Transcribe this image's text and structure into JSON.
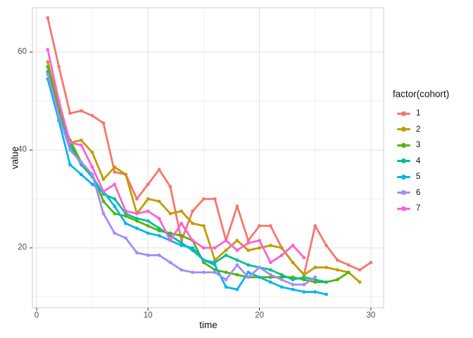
{
  "chart_data": {
    "type": "line",
    "title": "",
    "xlabel": "time",
    "ylabel": "value",
    "legend_title": "factor(cohort)",
    "legend_position": "right",
    "grid": "major and minor gridlines on white panel",
    "xlim": [
      -0.4,
      31.2
    ],
    "ylim": [
      7.8,
      69.2
    ],
    "x_major_ticks": [
      0,
      10,
      20,
      30
    ],
    "x_minor_gridlines": [
      5,
      15,
      25
    ],
    "y_major_ticks": [
      20,
      40,
      60
    ],
    "y_minor_gridlines": [
      10,
      30,
      50
    ],
    "x_start": 1,
    "x_step": 1,
    "marker": "point",
    "series": [
      {
        "name": "1",
        "color": "#F8766D",
        "values": [
          67,
          57,
          47.5,
          48,
          47,
          45.5,
          35.5,
          35,
          30,
          33,
          36,
          32.5,
          21.5,
          27.5,
          30,
          30,
          21.5,
          28.5,
          21.5,
          24.5,
          24.5,
          20,
          17,
          14.5,
          24.5,
          20.5,
          17.5,
          16.5,
          15.5,
          17
        ]
      },
      {
        "name": "2",
        "color": "#C49A00",
        "values": [
          58,
          49,
          41.5,
          42,
          39.5,
          34,
          36.5,
          35,
          27,
          30,
          29.5,
          27,
          27.5,
          25,
          24.5,
          17.5,
          19.5,
          21.5,
          19.5,
          20,
          20.5,
          20,
          17,
          14.5,
          16,
          16,
          15.5,
          15,
          13
        ]
      },
      {
        "name": "3",
        "color": "#53B400",
        "values": [
          57,
          48,
          42,
          37.5,
          35,
          29.5,
          27,
          26.5,
          25.5,
          24.5,
          23.5,
          23,
          22.5,
          21.5,
          17,
          15.5,
          15,
          14.5,
          14,
          14,
          14,
          14,
          14,
          13.5,
          13,
          13,
          13.5,
          15
        ]
      },
      {
        "name": "4",
        "color": "#00C094",
        "values": [
          56,
          47,
          41,
          37,
          34.5,
          31,
          30,
          27,
          26,
          25.5,
          24,
          22.5,
          21,
          19.5,
          17.5,
          17,
          18.5,
          17.5,
          16.5,
          16,
          15.5,
          14.5,
          13.5,
          14,
          13.5,
          13
        ]
      },
      {
        "name": "5",
        "color": "#00B6EB",
        "values": [
          54.5,
          46,
          37,
          35,
          33,
          31.5,
          28.5,
          25,
          24,
          23,
          22.5,
          21.5,
          20.5,
          20,
          17.5,
          16.5,
          12,
          11.5,
          15,
          14,
          13,
          12,
          11.5,
          11,
          11,
          10.5
        ]
      },
      {
        "name": "6",
        "color": "#A58AFF",
        "values": [
          55.5,
          47,
          40,
          37.5,
          35,
          27,
          23,
          22,
          19,
          18.5,
          18.5,
          17,
          15.5,
          15,
          15,
          15,
          13.5,
          16.5,
          14,
          16,
          14.5,
          13.5,
          12.5,
          12.5,
          14
        ]
      },
      {
        "name": "7",
        "color": "#FB61D7",
        "values": [
          60.5,
          50,
          41.5,
          41,
          36.5,
          31.5,
          33,
          27.5,
          27,
          27.5,
          26,
          21.5,
          25,
          21.5,
          20,
          20,
          21.5,
          19.5,
          21,
          21.5,
          17,
          18.5,
          20.5,
          18
        ]
      }
    ]
  },
  "axes": {
    "x_tick_labels": [
      "0",
      "10",
      "20",
      "30"
    ],
    "y_tick_labels": [
      "20",
      "40",
      "60"
    ]
  },
  "style": {
    "panel_border_color": "#cdcdcd",
    "grid_major_color": "#e2e2e2",
    "grid_minor_color": "#f0f0f0",
    "tick_color": "#333333",
    "tick_label_color": "#4d4d4d",
    "background": "#ffffff"
  }
}
